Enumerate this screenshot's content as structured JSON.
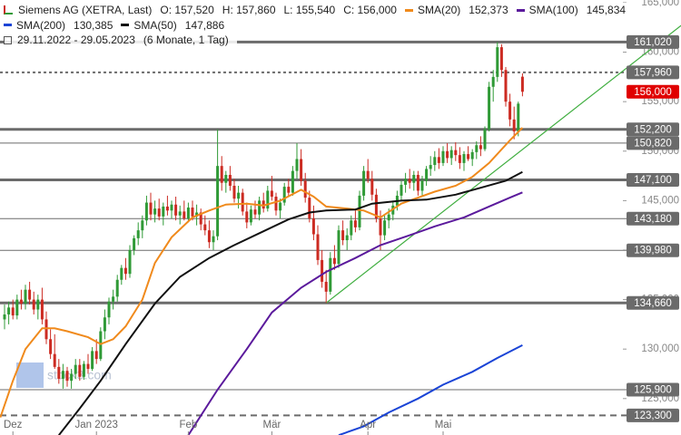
{
  "chart_data": {
    "type": "candlestick",
    "title": "Siemens AG (XETRA, Last)",
    "ohlc_labels": [
      "O: 157,520",
      "H: 157,860",
      "L: 155,540",
      "C: 156,000"
    ],
    "date_range": "29.11.2022 - 29.05.2023",
    "period": "(6 Monate, 1 Tag)",
    "watermark": "stock3.com",
    "candles": {
      "up_color": "#2f9a36",
      "down_color": "#cc2b22",
      "ohlc": [
        [
          133.0,
          134.5,
          132.0,
          133.5
        ],
        [
          133.5,
          134.8,
          132.5,
          134.2
        ],
        [
          134.2,
          135.0,
          133.0,
          133.4
        ],
        [
          133.4,
          135.5,
          133.0,
          135.0
        ],
        [
          135.0,
          136.0,
          134.0,
          134.6
        ],
        [
          134.6,
          136.5,
          134.0,
          136.0
        ],
        [
          136.0,
          136.8,
          134.5,
          135.0
        ],
        [
          135.0,
          135.8,
          133.5,
          134.0
        ],
        [
          134.0,
          135.5,
          133.0,
          135.0
        ],
        [
          135.0,
          136.2,
          132.5,
          133.0
        ],
        [
          133.0,
          133.8,
          130.5,
          131.0
        ],
        [
          131.0,
          132.0,
          129.0,
          129.5
        ],
        [
          129.5,
          131.5,
          128.0,
          128.2
        ],
        [
          128.2,
          129.0,
          126.5,
          127.0
        ],
        [
          127.0,
          128.5,
          126.0,
          127.8
        ],
        [
          127.8,
          128.2,
          126.2,
          126.8
        ],
        [
          126.8,
          128.0,
          126.0,
          127.5
        ],
        [
          127.5,
          129.0,
          127.0,
          128.4
        ],
        [
          128.4,
          129.0,
          126.8,
          127.2
        ],
        [
          127.2,
          128.8,
          126.9,
          128.5
        ],
        [
          128.5,
          129.5,
          127.5,
          128.0
        ],
        [
          128.0,
          130.2,
          127.8,
          129.8
        ],
        [
          129.8,
          131.0,
          128.5,
          129.0
        ],
        [
          129.0,
          132.2,
          128.8,
          131.8
        ],
        [
          131.8,
          134.0,
          131.0,
          133.2
        ],
        [
          133.2,
          135.2,
          132.5,
          134.8
        ],
        [
          134.8,
          136.0,
          134.0,
          135.3
        ],
        [
          135.3,
          137.5,
          134.8,
          137.0
        ],
        [
          137.0,
          138.5,
          136.5,
          138.2
        ],
        [
          138.2,
          139.2,
          137.0,
          137.6
        ],
        [
          137.6,
          140.5,
          137.2,
          140.0
        ],
        [
          140.0,
          141.5,
          139.5,
          141.2
        ],
        [
          141.2,
          142.8,
          140.5,
          142.0
        ],
        [
          142.0,
          143.5,
          141.2,
          143.0
        ],
        [
          143.0,
          145.5,
          142.5,
          144.8
        ],
        [
          144.8,
          145.8,
          143.0,
          143.6
        ],
        [
          143.6,
          145.0,
          142.8,
          144.2
        ],
        [
          144.2,
          145.2,
          143.0,
          143.4
        ],
        [
          143.4,
          144.8,
          142.5,
          144.4
        ],
        [
          144.4,
          145.5,
          143.5,
          144.0
        ],
        [
          144.0,
          145.0,
          143.2,
          144.6
        ],
        [
          144.6,
          145.4,
          143.0,
          143.5
        ],
        [
          143.5,
          144.5,
          142.6,
          143.9
        ],
        [
          143.9,
          145.0,
          143.0,
          143.2
        ],
        [
          143.2,
          144.8,
          142.8,
          144.3
        ],
        [
          144.3,
          145.0,
          143.0,
          143.4
        ],
        [
          143.4,
          144.6,
          142.5,
          143.8
        ],
        [
          143.8,
          144.2,
          142.0,
          142.6
        ],
        [
          142.6,
          143.5,
          141.5,
          142.0
        ],
        [
          142.0,
          143.0,
          140.2,
          140.8
        ],
        [
          140.8,
          142.0,
          140.0,
          141.4
        ],
        [
          141.4,
          152.2,
          141.0,
          148.5
        ],
        [
          148.5,
          149.5,
          146.0,
          146.8
        ],
        [
          146.8,
          148.0,
          145.8,
          147.6
        ],
        [
          147.6,
          148.5,
          146.0,
          146.5
        ],
        [
          146.5,
          147.2,
          144.8,
          145.2
        ],
        [
          145.2,
          146.5,
          144.2,
          145.8
        ],
        [
          145.8,
          146.2,
          143.5,
          143.9
        ],
        [
          143.9,
          144.8,
          142.2,
          142.8
        ],
        [
          142.8,
          144.5,
          142.5,
          144.1
        ],
        [
          144.1,
          145.0,
          143.2,
          143.6
        ],
        [
          143.6,
          145.4,
          143.0,
          145.0
        ],
        [
          145.0,
          145.8,
          143.8,
          144.2
        ],
        [
          144.2,
          146.5,
          143.9,
          146.0
        ],
        [
          146.0,
          147.5,
          145.0,
          145.4
        ],
        [
          145.4,
          145.8,
          143.5,
          144.0
        ],
        [
          144.0,
          145.2,
          143.2,
          144.8
        ],
        [
          144.8,
          146.8,
          144.5,
          146.4
        ],
        [
          146.4,
          147.2,
          145.5,
          145.8
        ],
        [
          145.8,
          148.5,
          145.5,
          148.0
        ],
        [
          148.0,
          150.8,
          147.2,
          149.2
        ],
        [
          149.2,
          150.2,
          146.5,
          147.0
        ],
        [
          147.0,
          147.8,
          144.8,
          145.3
        ],
        [
          145.3,
          146.0,
          142.8,
          143.2
        ],
        [
          143.2,
          144.5,
          141.0,
          141.6
        ],
        [
          141.6,
          142.5,
          138.5,
          139.0
        ],
        [
          139.0,
          140.0,
          136.2,
          136.8
        ],
        [
          136.8,
          138.0,
          134.66,
          135.8
        ],
        [
          135.8,
          139.8,
          135.5,
          139.2
        ],
        [
          139.2,
          140.5,
          138.0,
          138.6
        ],
        [
          138.6,
          142.5,
          138.2,
          142.0
        ],
        [
          142.0,
          143.0,
          140.5,
          141.0
        ],
        [
          141.0,
          142.2,
          140.0,
          141.5
        ],
        [
          141.5,
          143.5,
          141.0,
          143.0
        ],
        [
          143.0,
          144.0,
          141.8,
          142.3
        ],
        [
          142.3,
          146.0,
          142.0,
          145.5
        ],
        [
          145.5,
          148.5,
          145.0,
          148.0
        ],
        [
          148.0,
          149.2,
          146.8,
          147.2
        ],
        [
          147.2,
          148.0,
          145.0,
          145.6
        ],
        [
          145.6,
          146.2,
          142.8,
          143.2
        ],
        [
          143.2,
          144.0,
          140.0,
          141.5
        ],
        [
          141.5,
          143.5,
          141.0,
          143.0
        ],
        [
          143.0,
          144.2,
          142.2,
          143.6
        ],
        [
          143.6,
          145.0,
          143.0,
          144.5
        ],
        [
          144.5,
          146.0,
          144.0,
          145.5
        ],
        [
          145.5,
          147.0,
          145.0,
          146.6
        ],
        [
          146.6,
          147.8,
          145.8,
          147.2
        ],
        [
          147.2,
          148.2,
          146.2,
          146.8
        ],
        [
          146.8,
          148.0,
          146.0,
          147.6
        ],
        [
          147.6,
          148.0,
          145.5,
          146.0
        ],
        [
          146.0,
          147.5,
          145.5,
          147.0
        ],
        [
          147.0,
          148.5,
          146.5,
          148.2
        ],
        [
          148.2,
          149.5,
          147.5,
          148.6
        ],
        [
          148.6,
          150.0,
          148.0,
          149.4
        ],
        [
          149.4,
          150.3,
          148.2,
          148.8
        ],
        [
          148.8,
          150.5,
          148.5,
          150.0
        ],
        [
          150.0,
          150.8,
          148.8,
          149.3
        ],
        [
          149.3,
          150.5,
          148.6,
          150.1
        ],
        [
          150.1,
          150.9,
          149.0,
          149.6
        ],
        [
          149.6,
          150.4,
          148.2,
          148.8
        ],
        [
          148.8,
          150.0,
          148.0,
          149.7
        ],
        [
          149.7,
          150.5,
          149.0,
          149.2
        ],
        [
          149.2,
          150.2,
          148.5,
          149.9
        ],
        [
          149.9,
          151.0,
          149.2,
          150.6
        ],
        [
          150.6,
          151.5,
          149.5,
          150.2
        ],
        [
          150.2,
          152.5,
          150.0,
          152.2
        ],
        [
          152.2,
          157.0,
          152.0,
          156.5
        ],
        [
          156.5,
          158.2,
          155.0,
          157.5
        ],
        [
          157.5,
          161.02,
          157.0,
          160.5
        ],
        [
          160.5,
          160.8,
          157.5,
          158.2
        ],
        [
          158.2,
          158.5,
          154.5,
          155.0
        ],
        [
          155.0,
          155.8,
          152.5,
          153.2
        ],
        [
          153.2,
          154.5,
          151.2,
          152.0
        ],
        [
          152.0,
          155.0,
          151.5,
          154.8
        ],
        [
          157.52,
          157.86,
          155.54,
          156.0
        ]
      ]
    },
    "sma": [
      {
        "name": "SMA(20)",
        "value_label": "152,373",
        "color": "#f08a1c",
        "x": [
          -1,
          2,
          5,
          9,
          12,
          15,
          20,
          23,
          26,
          29,
          33,
          36,
          40,
          45,
          49,
          53,
          58,
          62,
          66,
          71,
          74,
          77,
          82,
          86,
          90,
          95,
          99,
          103,
          108,
          112,
          116,
          121,
          124
        ],
        "values": [
          123.1,
          126.8,
          130.0,
          132.1,
          132.1,
          131.8,
          131.2,
          130.5,
          131.0,
          132.3,
          135.0,
          138.7,
          141.3,
          143.3,
          144.0,
          144.6,
          144.7,
          144.5,
          145.0,
          146.1,
          145.4,
          144.4,
          144.2,
          144.0,
          143.3,
          144.7,
          145.3,
          145.9,
          146.5,
          147.4,
          148.8,
          151.1,
          152.37
        ]
      },
      {
        "name": "SMA(100)",
        "value_label": "145,834",
        "color": "#5b1a9c",
        "x": [
          44,
          51,
          58,
          64,
          71,
          77,
          84,
          90,
          97,
          103,
          110,
          116,
          121,
          124
        ],
        "values": [
          121.3,
          125.9,
          130.0,
          133.7,
          136.2,
          137.8,
          139.2,
          140.5,
          141.5,
          142.4,
          143.3,
          144.4,
          145.3,
          145.83
        ]
      },
      {
        "name": "SMA(200)",
        "value_label": "130,385",
        "color": "#1a44d6",
        "x": [
          80,
          86,
          92,
          99,
          105,
          112,
          118,
          124
        ],
        "values": [
          121.3,
          122.2,
          123.6,
          125.0,
          126.4,
          127.7,
          129.1,
          130.39
        ]
      },
      {
        "name": "SMA(50)",
        "value_label": "147,886",
        "color": "#111111",
        "x": [
          13,
          18,
          23,
          29,
          36,
          42,
          49,
          55,
          62,
          68,
          73,
          77,
          84,
          88,
          95,
          101,
          108,
          114,
          120,
          124
        ],
        "values": [
          121.3,
          124.0,
          126.8,
          130.5,
          134.6,
          137.3,
          139.2,
          140.5,
          141.9,
          143.1,
          143.8,
          144.0,
          144.1,
          144.7,
          145.0,
          145.1,
          145.6,
          146.3,
          147.0,
          147.89
        ]
      }
    ],
    "trendline": {
      "color": "#3fae3f",
      "x": [
        77,
        162
      ],
      "values": [
        134.66,
        162.7
      ]
    },
    "levels": [
      {
        "value": 161.02,
        "label": "161,020",
        "style": "thick",
        "color": "#6b6b6b"
      },
      {
        "value": 157.96,
        "label": "157,960",
        "style": "dotted",
        "color": "#6b6b6b"
      },
      {
        "value": 156.0,
        "label": "156,000",
        "style": "none",
        "color": "#e00000"
      },
      {
        "value": 152.2,
        "label": "152,200",
        "style": "thick",
        "color": "#6b6b6b"
      },
      {
        "value": 150.82,
        "label": "150,820",
        "style": "thin",
        "color": "#6b6b6b"
      },
      {
        "value": 147.1,
        "label": "147,100",
        "style": "thick",
        "color": "#6b6b6b"
      },
      {
        "value": 143.18,
        "label": "143,180",
        "style": "thin",
        "color": "#6b6b6b"
      },
      {
        "value": 139.98,
        "label": "139,980",
        "style": "thin",
        "color": "#6b6b6b"
      },
      {
        "value": 134.66,
        "label": "134,660",
        "style": "thick",
        "color": "#6b6b6b"
      },
      {
        "value": 125.9,
        "label": "125,900",
        "style": "thin",
        "color": "#6b6b6b"
      },
      {
        "value": 123.3,
        "label": "123,300",
        "style": "dashed",
        "color": "#6b6b6b"
      }
    ],
    "ylim": [
      121.32,
      165.27
    ],
    "yticks": [
      {
        "value": 125,
        "label": "125,000"
      },
      {
        "value": 130,
        "label": "130,000"
      },
      {
        "value": 135,
        "label": "135,000"
      },
      {
        "value": 140,
        "label": "140,000"
      },
      {
        "value": 145,
        "label": "145,000"
      },
      {
        "value": 150,
        "label": "150,000"
      },
      {
        "value": 155,
        "label": "155,000"
      },
      {
        "value": 160,
        "label": "160,000"
      },
      {
        "value": 165,
        "label": "165,000"
      }
    ],
    "xlim": [
      -1.09,
      161.96
    ],
    "xticks": [
      {
        "value": 2,
        "label": "Dez"
      },
      {
        "value": 22,
        "label": "Jan 2023"
      },
      {
        "value": 44,
        "label": "Feb"
      },
      {
        "value": 64,
        "label": "Mär"
      },
      {
        "value": 87,
        "label": "Apr"
      },
      {
        "value": 105,
        "label": "Mai"
      }
    ]
  }
}
